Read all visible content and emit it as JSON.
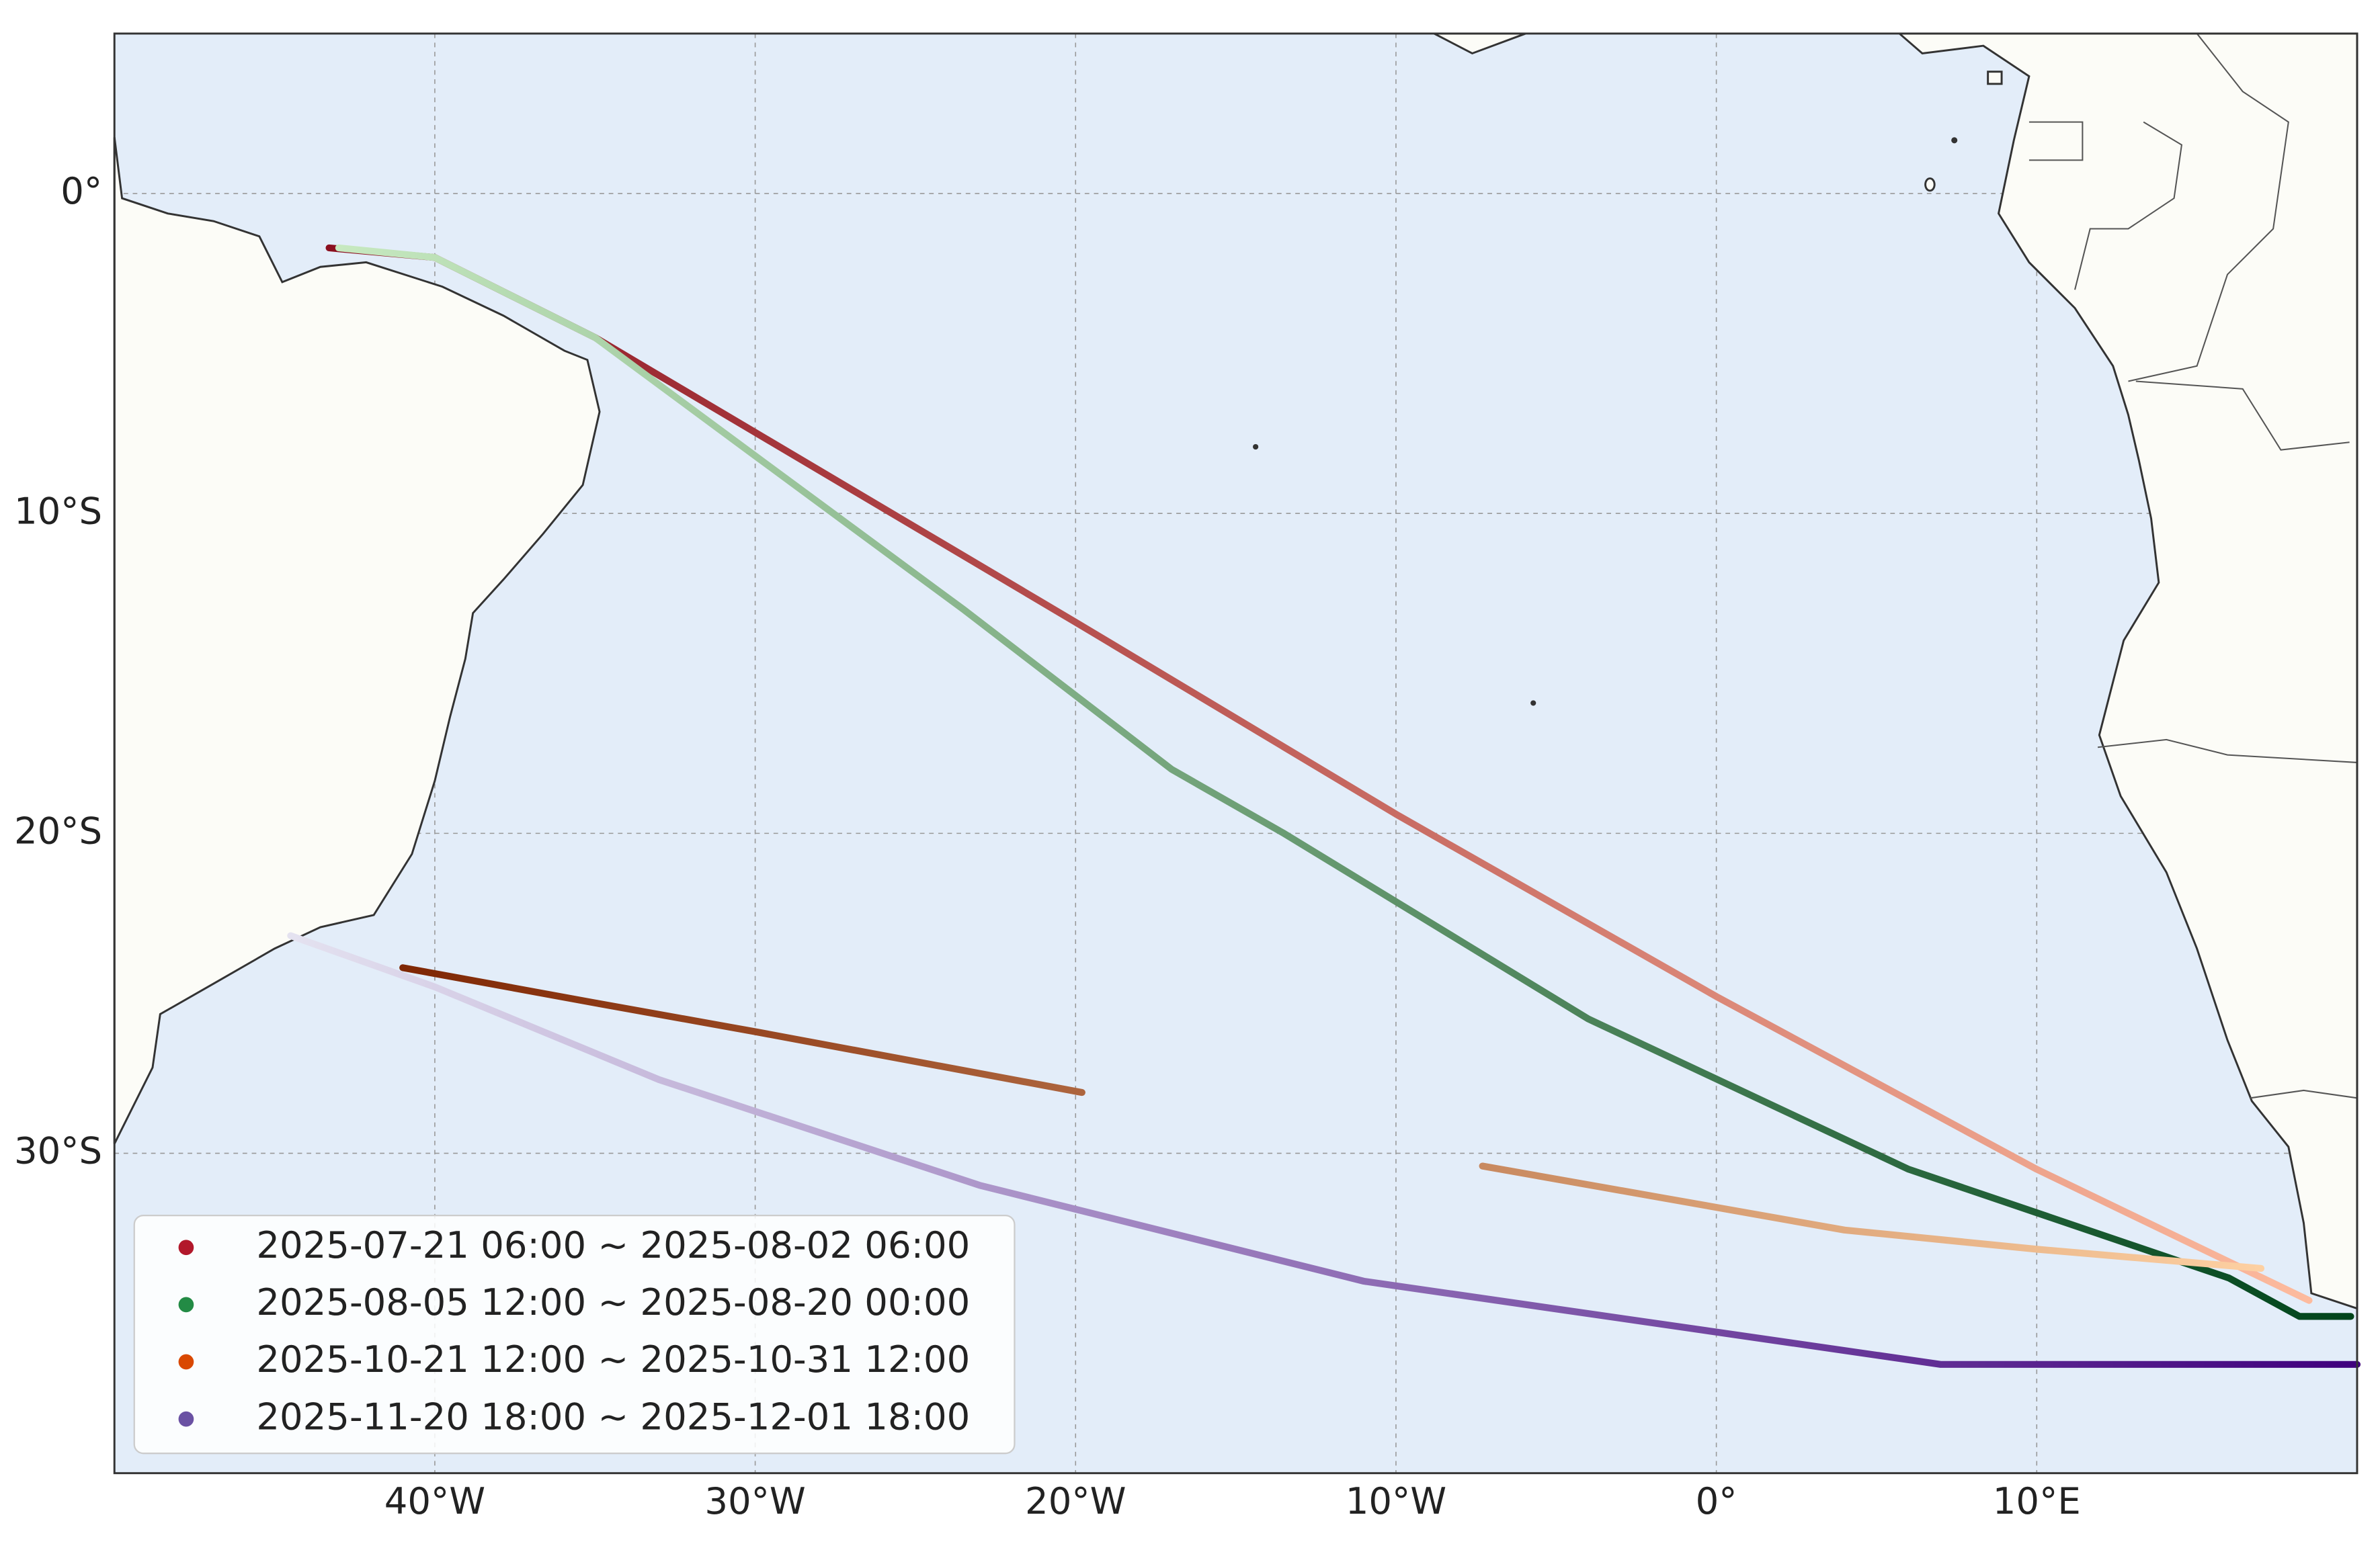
{
  "chart_data": {
    "type": "line",
    "xlim": [
      -50,
      20
    ],
    "ylim": [
      -40,
      5
    ],
    "grid": true,
    "legend": "lower left",
    "xticks": [
      {
        "value": -40,
        "label": "40°W"
      },
      {
        "value": -30,
        "label": "30°W"
      },
      {
        "value": -20,
        "label": "20°W"
      },
      {
        "value": -10,
        "label": "10°W"
      },
      {
        "value": 0,
        "label": "0°"
      },
      {
        "value": 10,
        "label": "10°E"
      }
    ],
    "yticks": [
      {
        "value": 0,
        "label": "0°"
      },
      {
        "value": -10,
        "label": "10°S"
      },
      {
        "value": -20,
        "label": "20°S"
      },
      {
        "value": -30,
        "label": "30°S"
      }
    ],
    "series": [
      {
        "name": "2025-07-21 06:00 ~ 2025-08-02 06:00",
        "color": "#b2182b",
        "gradient": [
          "#8b0f1f",
          "#fdbb9e"
        ],
        "x": [
          -43.3,
          -40,
          -35,
          -20,
          -10,
          0,
          10,
          18.5
        ],
        "values": [
          -1.7,
          -2.0,
          -4.5,
          -13.4,
          -19.4,
          -25.1,
          -30.5,
          -34.6
        ]
      },
      {
        "name": "2025-08-05 12:00 ~ 2025-08-20 00:00",
        "color": "#238b45",
        "gradient": [
          "#c7e9c0",
          "#00441b"
        ],
        "x": [
          -43,
          -40,
          -35,
          -30,
          -23.5,
          -17,
          -13.5,
          -4,
          6,
          16,
          18.2,
          19.8
        ],
        "values": [
          -1.7,
          -2.0,
          -4.5,
          -8.2,
          -13.0,
          -18.0,
          -20.0,
          -25.8,
          -30.5,
          -33.9,
          -35.1,
          -35.1
        ]
      },
      {
        "name": "2025-10-21 12:00 ~ 2025-10-31 12:00",
        "color": "#d94801",
        "gradient": [
          "#7f2704",
          "#fdd0a2"
        ],
        "x": [
          -41,
          -35,
          -30,
          -19.8,
          null,
          -7.3,
          4,
          10,
          17
        ],
        "values": [
          -24.2,
          -25.3,
          -26.2,
          -28.1,
          null,
          -30.4,
          -32.4,
          -33.0,
          -33.6
        ]
      },
      {
        "name": "2025-11-20 18:00 ~ 2025-12-01 18:00",
        "color": "#6a51a3",
        "gradient": [
          "#e4e2f0",
          "#3f007d"
        ],
        "x": [
          -44.5,
          -40,
          -33,
          -23,
          -11,
          7,
          20
        ],
        "values": [
          -23.2,
          -24.8,
          -27.7,
          -31.0,
          -34.0,
          -36.6,
          -36.6
        ]
      }
    ]
  }
}
